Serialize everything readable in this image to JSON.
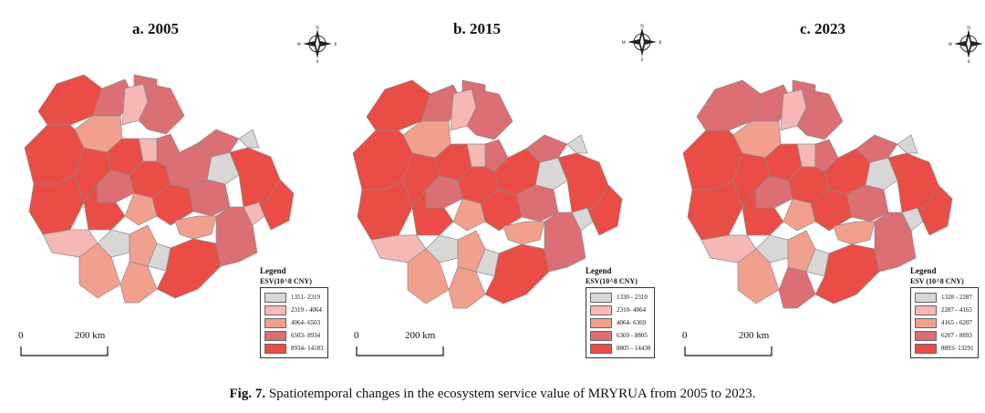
{
  "colors": {
    "class1": "#d9d6d6",
    "class2": "#f5b8b6",
    "class3": "#f2a08e",
    "class4": "#dc6f74",
    "class5": "#ea4d46",
    "border": "#8a8a8a"
  },
  "compass": {
    "n": "N",
    "s": "S",
    "e": "E",
    "w": "W"
  },
  "panels": [
    {
      "title": "a. 2005",
      "legend_title": "Legend",
      "legend_subtitle": "ESV(10^8 CNY)",
      "legend_items": [
        {
          "label": "1351- 2319",
          "color": "#d9d6d6"
        },
        {
          "label": "2319 - 4064",
          "color": "#f5b8b6"
        },
        {
          "label": "4064- 6503",
          "color": "#f2a08e"
        },
        {
          "label": "6503- 8934",
          "color": "#dc6f74"
        },
        {
          "label": "8934- 14183",
          "color": "#ea4d46"
        }
      ],
      "regions": [
        5,
        4,
        4,
        3,
        2,
        4,
        5,
        5,
        5,
        2,
        4,
        5,
        4,
        5,
        4,
        3,
        5,
        5,
        4,
        1,
        5,
        4,
        1,
        3,
        2,
        1,
        3,
        3,
        3,
        1,
        5,
        4,
        2,
        5
      ]
    },
    {
      "title": "b. 2015",
      "legend_title": "Legend",
      "legend_subtitle": "ESV(10^8 CNY)",
      "legend_items": [
        {
          "label": "1330 - 2310",
          "color": "#d9d6d6"
        },
        {
          "label": "2310- 4064",
          "color": "#f5b8b6"
        },
        {
          "label": "4064- 6369",
          "color": "#f2a08e"
        },
        {
          "label": "6369 - 8805",
          "color": "#dc6f74"
        },
        {
          "label": "8805 - 14438",
          "color": "#ea4d46"
        }
      ],
      "regions": [
        5,
        4,
        4,
        3,
        2,
        4,
        5,
        5,
        5,
        2,
        4,
        5,
        4,
        5,
        5,
        3,
        5,
        5,
        4,
        1,
        5,
        4,
        1,
        3,
        2,
        1,
        3,
        3,
        3,
        1,
        5,
        4,
        1,
        5
      ]
    },
    {
      "title": "c. 2023",
      "legend_title": "Legend",
      "legend_subtitle": "ESV (10^8 CNY)",
      "legend_items": [
        {
          "label": "1328 - 2287",
          "color": "#d9d6d6"
        },
        {
          "label": "2287 - 4165",
          "color": "#f5b8b6"
        },
        {
          "label": "4165 - 6207",
          "color": "#f2a08e"
        },
        {
          "label": "6207 - 8893",
          "color": "#dc6f74"
        },
        {
          "label": "8893- 13291",
          "color": "#ea4d46"
        }
      ],
      "regions": [
        4,
        4,
        4,
        3,
        2,
        4,
        5,
        5,
        5,
        2,
        4,
        5,
        4,
        5,
        5,
        3,
        5,
        5,
        4,
        1,
        5,
        4,
        1,
        3,
        2,
        1,
        3,
        3,
        4,
        1,
        5,
        4,
        1,
        5
      ]
    }
  ],
  "scale": {
    "zero": "0",
    "label": "200 km"
  },
  "caption": {
    "label": "Fig. 7.",
    "text": "Spatiotemporal changes in the ecosystem service value of MRYRUA from 2005 to 2023."
  }
}
